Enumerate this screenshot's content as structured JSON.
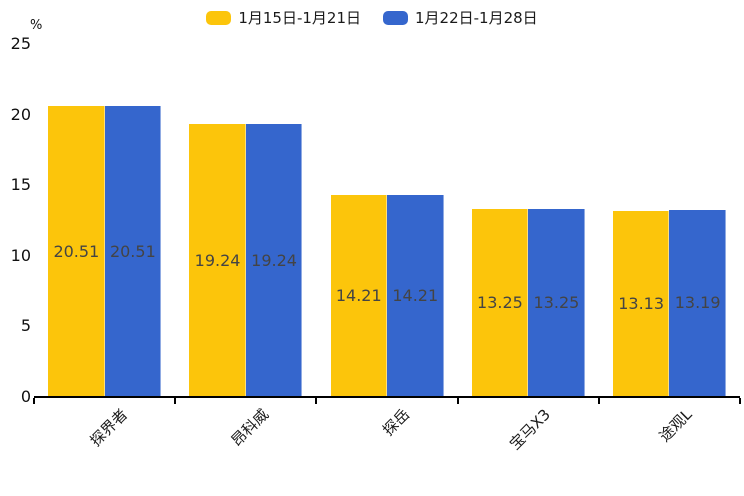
{
  "chart_data": {
    "type": "bar",
    "title": "",
    "unit": "%",
    "categories": [
      "探界者",
      "昂科威",
      "探岳",
      "宝马X3",
      "途观L"
    ],
    "series": [
      {
        "name": "1月15日-1月21日",
        "color": "#FCC50B",
        "values": [
          20.51,
          19.24,
          14.21,
          13.25,
          13.13
        ]
      },
      {
        "name": "1月22日-1月28日",
        "color": "#3566CD",
        "values": [
          20.51,
          19.24,
          14.21,
          13.25,
          13.19
        ]
      }
    ],
    "ylim": [
      0,
      25
    ],
    "yticks": [
      0,
      5,
      10,
      15,
      20,
      25
    ],
    "grid": false,
    "legend_position": "top-center",
    "value_labels": "inside-center",
    "xlabel_rotation_deg": 45,
    "value_label_color": "#444444",
    "axis_color": "#000000"
  }
}
